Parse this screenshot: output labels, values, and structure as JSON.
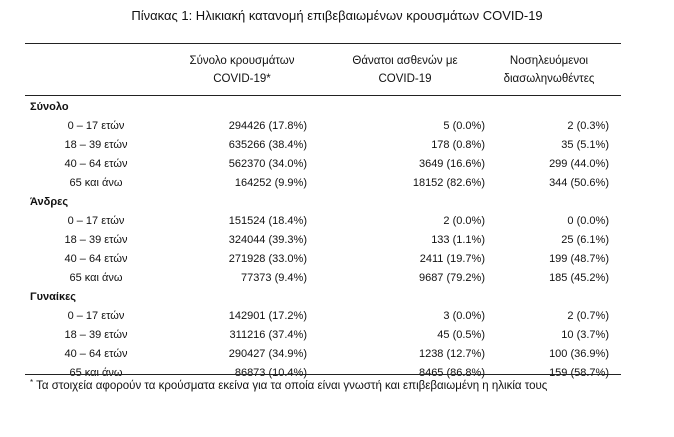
{
  "title": "Πίνακας 1: Ηλικιακή κατανομή επιβεβαιωμένων κρουσμάτων COVID-19",
  "headers": {
    "col1_line1": "Σύνολο κρουσμάτων",
    "col1_line2": "COVID-19*",
    "col2_line1": "Θάνατοι ασθενών με",
    "col2_line2": "COVID-19",
    "col3_line1": "Νοσηλευόμενοι",
    "col3_line2": "διασωληνωθέντες"
  },
  "sections": [
    {
      "name": "Σύνολο",
      "rows": [
        {
          "age": "0 – 17 ετών",
          "cases": "294426 (17.8%)",
          "deaths": "5 (0.0%)",
          "intubated": "2 (0.3%)"
        },
        {
          "age": "18 – 39 ετών",
          "cases": "635266 (38.4%)",
          "deaths": "178 (0.8%)",
          "intubated": "35 (5.1%)"
        },
        {
          "age": "40 – 64 ετών",
          "cases": "562370 (34.0%)",
          "deaths": "3649 (16.6%)",
          "intubated": "299 (44.0%)"
        },
        {
          "age": "65 και άνω",
          "cases": "164252 (9.9%)",
          "deaths": "18152 (82.6%)",
          "intubated": "344 (50.6%)"
        }
      ]
    },
    {
      "name": "Άνδρες",
      "rows": [
        {
          "age": "0 – 17 ετών",
          "cases": "151524 (18.4%)",
          "deaths": "2 (0.0%)",
          "intubated": "0 (0.0%)"
        },
        {
          "age": "18 – 39 ετών",
          "cases": "324044 (39.3%)",
          "deaths": "133 (1.1%)",
          "intubated": "25 (6.1%)"
        },
        {
          "age": "40 – 64 ετών",
          "cases": "271928 (33.0%)",
          "deaths": "2411 (19.7%)",
          "intubated": "199 (48.7%)"
        },
        {
          "age": "65 και άνω",
          "cases": "77373 (9.4%)",
          "deaths": "9687 (79.2%)",
          "intubated": "185 (45.2%)"
        }
      ]
    },
    {
      "name": "Γυναίκες",
      "rows": [
        {
          "age": "0 – 17 ετών",
          "cases": "142901 (17.2%)",
          "deaths": "3 (0.0%)",
          "intubated": "2 (0.7%)"
        },
        {
          "age": "18 – 39 ετών",
          "cases": "311216 (37.4%)",
          "deaths": "45 (0.5%)",
          "intubated": "10 (3.7%)"
        },
        {
          "age": "40 – 64 ετών",
          "cases": "290427 (34.9%)",
          "deaths": "1238 (12.7%)",
          "intubated": "100 (36.9%)"
        },
        {
          "age": "65 και άνω",
          "cases": "86873 (10.4%)",
          "deaths": "8465 (86.8%)",
          "intubated": "159 (58.7%)"
        }
      ]
    }
  ],
  "footnote": {
    "marker": "*",
    "text": "Τα στοιχεία αφορούν τα κρούσματα εκείνα για τα οποία είναι γνωστή και επιβεβαιωμένη η ηλικία τους"
  }
}
